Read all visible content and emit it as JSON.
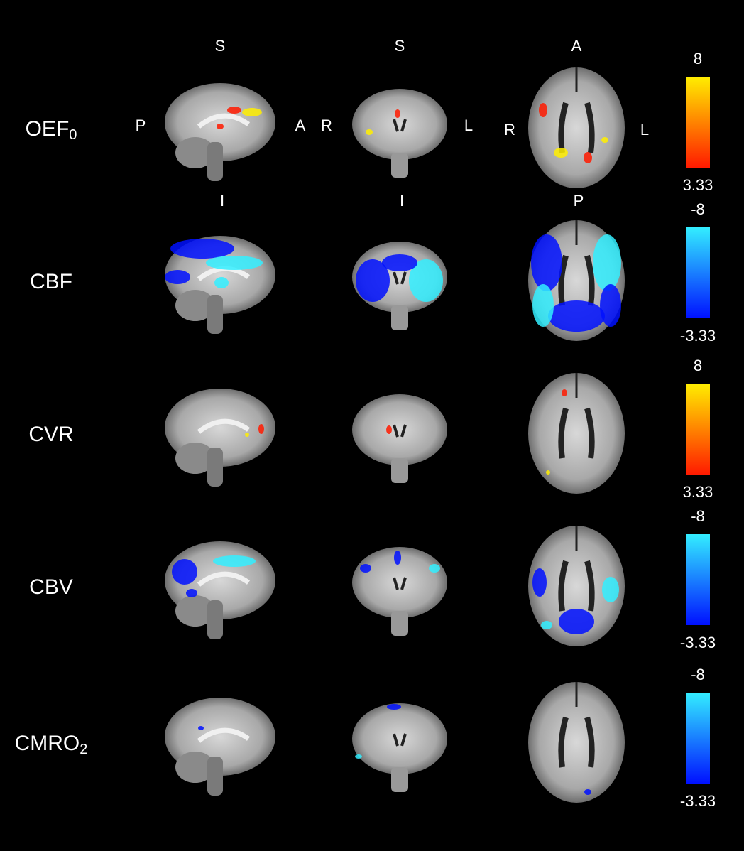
{
  "rows": [
    {
      "label": {
        "text": "OEF",
        "sub": "0"
      },
      "colorbar": {
        "top": 8,
        "bottom": 3.33,
        "colors": [
          "#ffee00",
          "#ff1a00"
        ]
      }
    },
    {
      "label": {
        "text": "CBF"
      },
      "colorbar": {
        "top": -8,
        "bottom": -3.33,
        "colors": [
          "#33eeff",
          "#0010ff"
        ]
      }
    },
    {
      "label": {
        "text": "CVR"
      },
      "colorbar": {
        "top": 8,
        "bottom": 3.33,
        "colors": [
          "#ffee00",
          "#ff1a00"
        ]
      }
    },
    {
      "label": {
        "text": "CBV"
      },
      "colorbar": {
        "top": -8,
        "bottom": -3.33,
        "colors": [
          "#33eeff",
          "#0010ff"
        ]
      }
    },
    {
      "label": {
        "text": "CMRO",
        "sub": "2"
      },
      "colorbar": {
        "top": -8,
        "bottom": -3.33,
        "colors": [
          "#33eeff",
          "#0010ff"
        ]
      }
    }
  ],
  "orientation": {
    "top": [
      "S",
      "S",
      "A"
    ],
    "bottom": [
      "I",
      "I",
      "P"
    ],
    "sides": [
      [
        "P",
        "A"
      ],
      [
        "R",
        "L"
      ],
      [
        "R",
        "L"
      ]
    ]
  }
}
